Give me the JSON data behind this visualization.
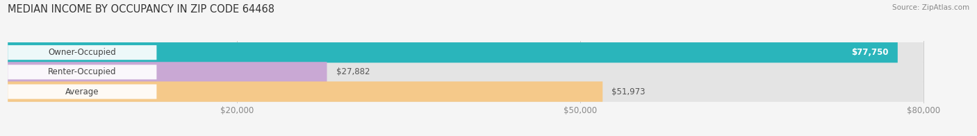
{
  "title": "MEDIAN INCOME BY OCCUPANCY IN ZIP CODE 64468",
  "source": "Source: ZipAtlas.com",
  "categories": [
    "Owner-Occupied",
    "Renter-Occupied",
    "Average"
  ],
  "values": [
    77750,
    27882,
    51973
  ],
  "bar_colors": [
    "#2ab5bb",
    "#c9a8d4",
    "#f5c98a"
  ],
  "label_values": [
    "$77,750",
    "$27,882",
    "$51,973"
  ],
  "xlim": [
    0,
    84000
  ],
  "x_max_display": 80000,
  "xticks": [
    20000,
    50000,
    80000
  ],
  "xtick_labels": [
    "$20,000",
    "$50,000",
    "$80,000"
  ],
  "background_color": "#f5f5f5",
  "bar_bg_color": "#e4e4e4",
  "title_fontsize": 10.5,
  "source_fontsize": 7.5,
  "label_fontsize": 8.5,
  "category_fontsize": 8.5,
  "value_label_color": [
    "#ffffff",
    "#555555",
    "#555555"
  ]
}
